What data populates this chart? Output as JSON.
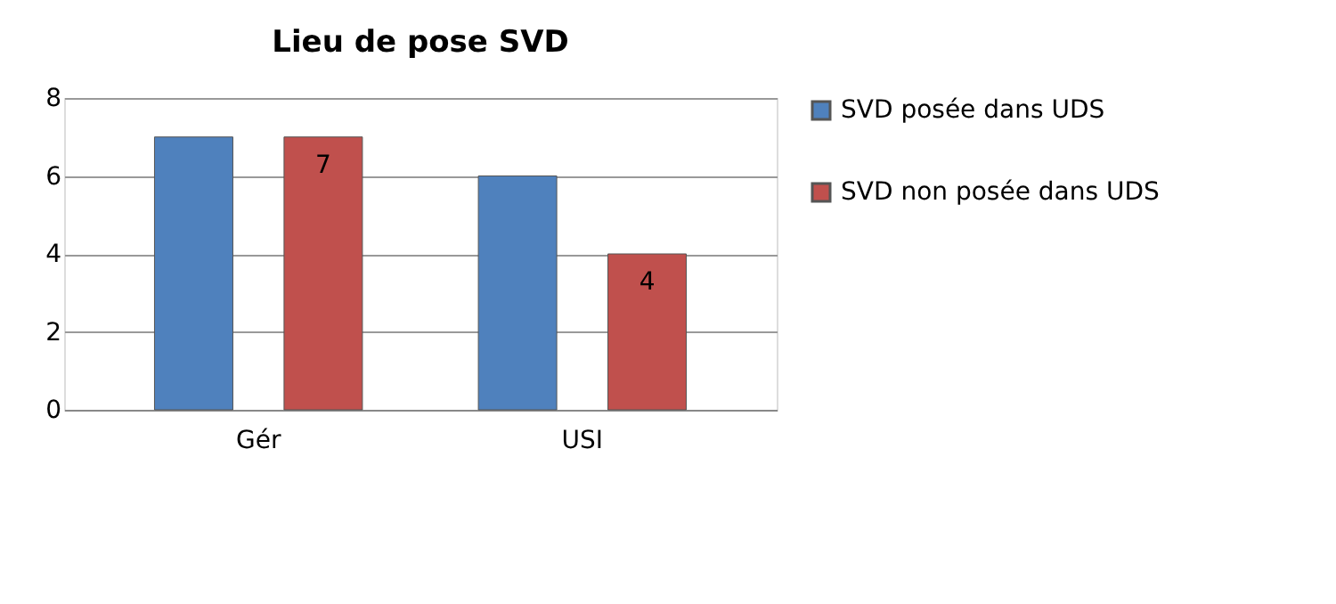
{
  "chart_data": {
    "type": "bar",
    "title": "Lieu de pose SVD",
    "categories": [
      "Gér",
      "USI"
    ],
    "series": [
      {
        "name": "SVD posée dans UDS",
        "color": "#4f81bd",
        "values": [
          7,
          6
        ]
      },
      {
        "name": "SVD non posée dans UDS",
        "color": "#c0504d",
        "values": [
          7,
          4
        ],
        "value_labels": [
          "7",
          "4"
        ]
      }
    ],
    "ylim": [
      0,
      8
    ],
    "yticks": [
      0,
      2,
      4,
      6,
      8
    ],
    "grid": "y",
    "legend": "right"
  }
}
